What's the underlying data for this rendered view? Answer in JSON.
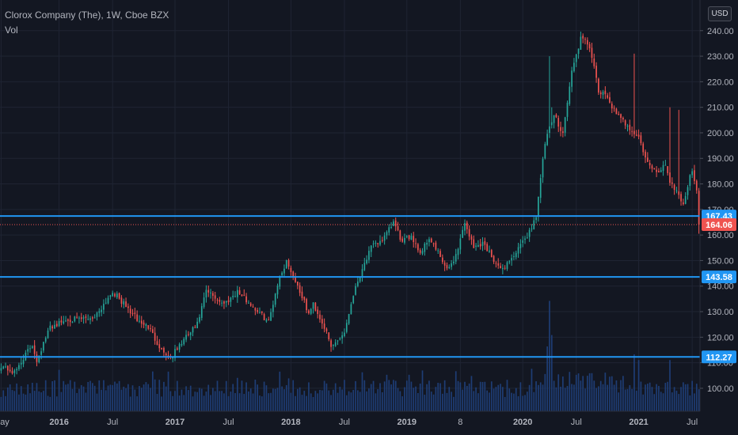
{
  "header": {
    "symbol_line": "Clorox Company (The), 1W, Cboe BZX",
    "volume_label": "Vol"
  },
  "currency_button": "USD",
  "colors": {
    "background": "#131722",
    "grid": "#1f2433",
    "up": "#26a69a",
    "down": "#ef5350",
    "level_line": "#2196f3",
    "volume": "#1e3d75",
    "axis_text": "#b2b5be"
  },
  "chart_data": {
    "type": "candlestick",
    "ylim": [
      91,
      252
    ],
    "y_ticks": [
      100,
      110,
      120,
      130,
      140,
      150,
      160,
      170,
      180,
      190,
      200,
      210,
      220,
      230,
      240
    ],
    "y_tick_labels": [
      "100.00",
      "110.00",
      "120.00",
      "130.00",
      "140.00",
      "150.00",
      "160.00",
      "170.00",
      "180.00",
      "190.00",
      "200.00",
      "210.00",
      "220.00",
      "230.00",
      "240.00"
    ],
    "x_labels": [
      "May",
      "2016",
      "Jul",
      "2017",
      "Jul",
      "2018",
      "Jul",
      "2019",
      "8",
      "2020",
      "Jul",
      "2021",
      "Jul"
    ],
    "x_label_weeks": [
      0,
      26,
      50,
      78,
      102,
      130,
      154,
      182,
      206,
      234,
      258,
      286,
      310
    ],
    "last_price": {
      "value": 164.06,
      "label": "164.06"
    },
    "levels": [
      {
        "value": 167.43,
        "label": "167.43"
      },
      {
        "value": 143.58,
        "label": "143.58"
      },
      {
        "value": 112.27,
        "label": "112.27"
      }
    ],
    "keypoints": [
      [
        0,
        109
      ],
      [
        6,
        106
      ],
      [
        10,
        112
      ],
      [
        14,
        117
      ],
      [
        16,
        111
      ],
      [
        22,
        124
      ],
      [
        30,
        127
      ],
      [
        36,
        127
      ],
      [
        42,
        128
      ],
      [
        50,
        138
      ],
      [
        56,
        132
      ],
      [
        62,
        126
      ],
      [
        66,
        124
      ],
      [
        72,
        115
      ],
      [
        76,
        112
      ],
      [
        82,
        119
      ],
      [
        88,
        125
      ],
      [
        92,
        138
      ],
      [
        100,
        133
      ],
      [
        106,
        138
      ],
      [
        114,
        131
      ],
      [
        120,
        126
      ],
      [
        124,
        141
      ],
      [
        128,
        150
      ],
      [
        134,
        138
      ],
      [
        138,
        129
      ],
      [
        140,
        133
      ],
      [
        145,
        124
      ],
      [
        148,
        116
      ],
      [
        154,
        122
      ],
      [
        158,
        137
      ],
      [
        162,
        147
      ],
      [
        166,
        155
      ],
      [
        172,
        159
      ],
      [
        176,
        165
      ],
      [
        180,
        157
      ],
      [
        184,
        160
      ],
      [
        188,
        153
      ],
      [
        192,
        159
      ],
      [
        196,
        153
      ],
      [
        200,
        146
      ],
      [
        204,
        152
      ],
      [
        208,
        165
      ],
      [
        212,
        155
      ],
      [
        216,
        157
      ],
      [
        220,
        152
      ],
      [
        224,
        146
      ],
      [
        230,
        152
      ],
      [
        234,
        157
      ],
      [
        238,
        163
      ],
      [
        240,
        168
      ],
      [
        242,
        182
      ],
      [
        244,
        196
      ],
      [
        248,
        207
      ],
      [
        252,
        200
      ],
      [
        256,
        224
      ],
      [
        260,
        237
      ],
      [
        264,
        234
      ],
      [
        268,
        216
      ],
      [
        272,
        214
      ],
      [
        276,
        207
      ],
      [
        282,
        202
      ],
      [
        286,
        198
      ],
      [
        290,
        188
      ],
      [
        294,
        184
      ],
      [
        298,
        188
      ],
      [
        300,
        181
      ],
      [
        304,
        176
      ],
      [
        306,
        172
      ],
      [
        310,
        186
      ],
      [
        312,
        178
      ],
      [
        313,
        164.06
      ]
    ],
    "spikes": [
      [
        246,
        230
      ],
      [
        247,
        210
      ],
      [
        284,
        231
      ],
      [
        300,
        210
      ],
      [
        304,
        209
      ]
    ],
    "volume_spikes": [
      [
        246,
        180
      ],
      [
        247,
        120
      ],
      [
        245,
        100
      ],
      [
        284,
        100
      ],
      [
        286,
        90
      ],
      [
        300,
        90
      ]
    ]
  }
}
